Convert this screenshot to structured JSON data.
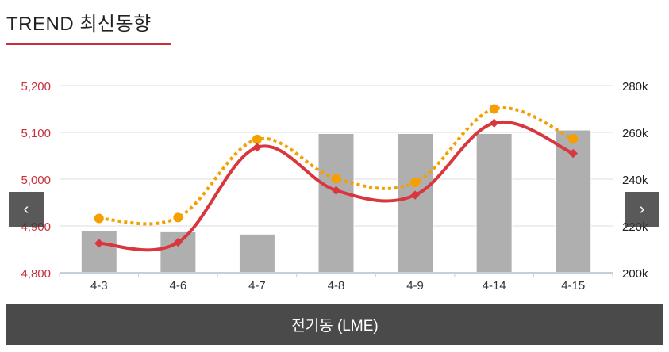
{
  "header": {
    "title": "TREND 최신동향"
  },
  "footer": {
    "label": "전기동 (LME)"
  },
  "nav": {
    "prev_icon": "chevron-left-icon",
    "next_icon": "chevron-right-icon",
    "prev_glyph": "‹",
    "next_glyph": "›"
  },
  "colors": {
    "bars": "#afafaf",
    "line_red": "#d9363e",
    "line_orange": "#f5a000",
    "left_axis_text": "#c8313b",
    "accent": "#c8313b"
  },
  "chart_data": {
    "type": "bar",
    "categories": [
      "4-3",
      "4-6",
      "4-7",
      "4-8",
      "4-9",
      "4-14",
      "4-15"
    ],
    "series": [
      {
        "type": "bar",
        "axis": "right",
        "values": [
          218000,
          217500,
          216500,
          259500,
          259500,
          259500,
          261000
        ]
      },
      {
        "type": "line",
        "axis": "left",
        "values": [
          4863,
          4865,
          5068,
          4976,
          4966,
          5120,
          5055
        ]
      },
      {
        "type": "line",
        "axis": "left",
        "style": "dotted",
        "values": [
          4916,
          4918,
          5085,
          5001,
          4993,
          5150,
          5086
        ]
      }
    ],
    "y_left": {
      "min": 4800,
      "max": 5200,
      "ticks": [
        "4,800",
        "4,900",
        "5,000",
        "5,100",
        "5,200"
      ]
    },
    "y_right": {
      "min": 200000,
      "max": 280000,
      "ticks": [
        "200k",
        "220k",
        "240k",
        "260k",
        "280k"
      ]
    },
    "grid": true
  }
}
